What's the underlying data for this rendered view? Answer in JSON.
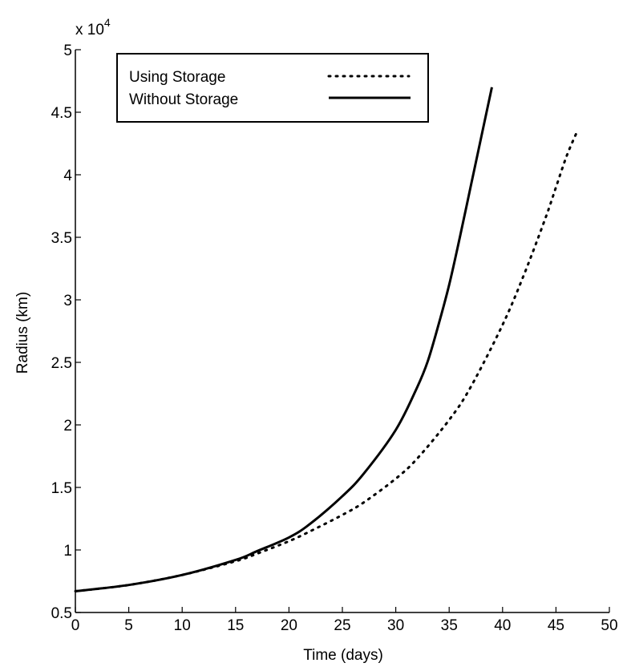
{
  "chart_data": {
    "type": "line",
    "title": "",
    "xlabel": "Time (days)",
    "ylabel": "Radius (km)",
    "y_multiplier_label": "x 10",
    "y_multiplier_exponent": "4",
    "xlim": [
      0,
      50
    ],
    "ylim": [
      0.5,
      5
    ],
    "x_ticks": [
      0,
      5,
      10,
      15,
      20,
      25,
      30,
      35,
      40,
      45,
      50
    ],
    "x_tick_labels": [
      "0",
      "5",
      "10",
      "15",
      "20",
      "25",
      "30",
      "35",
      "40",
      "45",
      "50"
    ],
    "y_ticks": [
      0.5,
      1,
      1.5,
      2,
      2.5,
      3,
      3.5,
      4,
      4.5,
      5
    ],
    "y_tick_labels": [
      "0.5",
      "1",
      "1.5",
      "2",
      "2.5",
      "3",
      "3.5",
      "4",
      "4.5",
      "5"
    ],
    "grid": false,
    "legend_position": "top-left",
    "series": [
      {
        "name": "Using Storage",
        "style": "dotted",
        "color": "#000000",
        "x": [
          0,
          5,
          10,
          15,
          17,
          20,
          22,
          25,
          27,
          30,
          32,
          35,
          37,
          40,
          42,
          44,
          45,
          46,
          47
        ],
        "y": [
          0.67,
          0.72,
          0.8,
          0.91,
          0.97,
          1.07,
          1.15,
          1.28,
          1.38,
          1.57,
          1.73,
          2.04,
          2.3,
          2.8,
          3.2,
          3.65,
          3.9,
          4.15,
          4.35
        ]
      },
      {
        "name": "Without Storage",
        "style": "solid",
        "color": "#000000",
        "x": [
          0,
          5,
          10,
          15,
          17,
          20,
          22,
          25,
          27,
          30,
          32,
          33,
          34,
          35,
          36,
          37,
          38,
          39
        ],
        "y": [
          0.67,
          0.72,
          0.8,
          0.92,
          0.99,
          1.1,
          1.21,
          1.43,
          1.61,
          1.96,
          2.3,
          2.51,
          2.8,
          3.12,
          3.5,
          3.9,
          4.3,
          4.7
        ]
      }
    ]
  }
}
